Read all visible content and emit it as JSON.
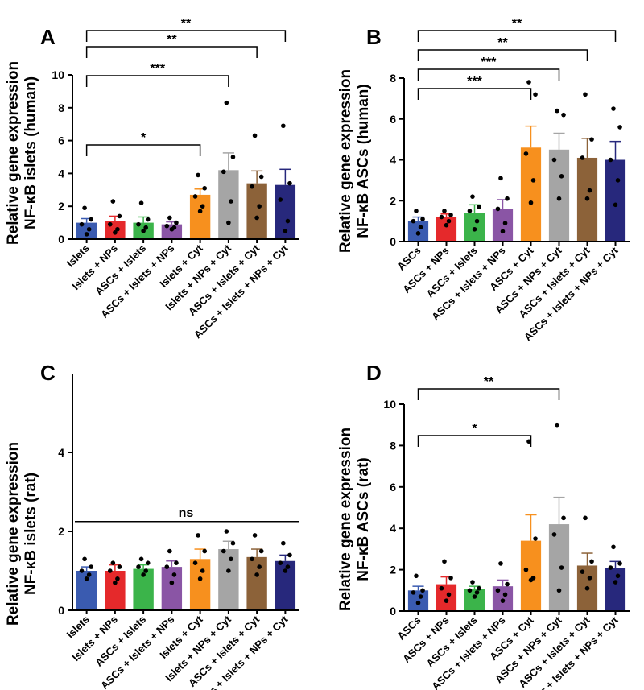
{
  "chart_data": [
    {
      "panel": "A",
      "type": "bar",
      "ylabel_line1": "Relative gene expression",
      "ylabel_line2": "NF-κB islets (human)",
      "ylim": [
        0,
        10
      ],
      "yticks": [
        0,
        2,
        4,
        6,
        8,
        10
      ],
      "categories": [
        "Islets",
        "Islets + NPs",
        "ASCs + Islets",
        "ASCs + Islets + NPs",
        "Islets + Cyt",
        "Islets + NPs + Cyt",
        "ASCs + Islets + Cyt",
        "ASCs + Islets + NPs + Cyt"
      ],
      "values": [
        1.0,
        1.1,
        1.0,
        0.9,
        2.7,
        4.2,
        3.4,
        3.3
      ],
      "errors": [
        0.25,
        0.3,
        0.35,
        0.15,
        0.35,
        1.05,
        0.75,
        0.95
      ],
      "points": [
        [
          1.9,
          1.2,
          0.9,
          0.6,
          0.3
        ],
        [
          2.3,
          1.4,
          0.9,
          0.6,
          0.4
        ],
        [
          2.2,
          1.2,
          0.9,
          0.7,
          0.5
        ],
        [
          1.3,
          1.0,
          0.8,
          0.7,
          0.6
        ],
        [
          3.9,
          3.1,
          2.6,
          2.0,
          1.7
        ],
        [
          8.3,
          5.0,
          4.1,
          2.3,
          1.0
        ],
        [
          6.3,
          3.8,
          3.2,
          2.0,
          1.3
        ],
        [
          6.9,
          3.4,
          2.4,
          1.1,
          0.5
        ]
      ],
      "colors": [
        "#3a5bb0",
        "#e5292b",
        "#3bb44a",
        "#8a55a5",
        "#f7901e",
        "#a5a5a5",
        "#8c6239",
        "#27287c"
      ],
      "significance": [
        {
          "from": 0,
          "to": 7,
          "label": "**"
        },
        {
          "from": 0,
          "to": 6,
          "label": "**"
        },
        {
          "from": 0,
          "to": 5,
          "label": "***"
        },
        {
          "from": 0,
          "to": 4,
          "label": "*"
        }
      ]
    },
    {
      "panel": "B",
      "type": "bar",
      "ylabel_line1": "Relative gene expression",
      "ylabel_line2": "NF-κB ASCs (human)",
      "ylim": [
        0,
        8
      ],
      "yticks": [
        0,
        2,
        4,
        6,
        8
      ],
      "categories": [
        "ASCs",
        "ASCs + NPs",
        "ASCs + Islets",
        "ASCs + Islets + NPs",
        "ASCs + Cyt",
        "ASCs + NPs + Cyt",
        "ASCs + Islets + Cyt",
        "ASCs + Islets + NPs + Cyt"
      ],
      "values": [
        1.0,
        1.2,
        1.4,
        1.6,
        4.6,
        4.5,
        4.1,
        4.0
      ],
      "errors": [
        0.2,
        0.15,
        0.4,
        0.45,
        1.05,
        0.8,
        0.95,
        0.9
      ],
      "points": [
        [
          1.5,
          1.1,
          1.0,
          0.7,
          0.4
        ],
        [
          1.5,
          1.3,
          1.2,
          1.0,
          0.8
        ],
        [
          2.2,
          1.7,
          1.5,
          1.0,
          0.6
        ],
        [
          3.1,
          2.1,
          1.6,
          0.9,
          0.5
        ],
        [
          7.8,
          7.2,
          4.3,
          3.0,
          1.9
        ],
        [
          6.4,
          6.2,
          4.0,
          3.2,
          2.1
        ],
        [
          7.2,
          5.0,
          4.1,
          2.5,
          2.1
        ],
        [
          6.5,
          5.6,
          4.0,
          3.0,
          1.8
        ]
      ],
      "colors": [
        "#3a5bb0",
        "#e5292b",
        "#3bb44a",
        "#8a55a5",
        "#f7901e",
        "#a5a5a5",
        "#8c6239",
        "#27287c"
      ],
      "significance": [
        {
          "from": 0,
          "to": 7,
          "label": "**"
        },
        {
          "from": 0,
          "to": 6,
          "label": "**"
        },
        {
          "from": 0,
          "to": 5,
          "label": "***"
        },
        {
          "from": 0,
          "to": 4,
          "label": "***"
        }
      ]
    },
    {
      "panel": "C",
      "type": "bar",
      "ylabel_line1": "Relative gene expression",
      "ylabel_line2": "NF-κB islets (rat)",
      "ylim": [
        0,
        6
      ],
      "yticks": [
        0,
        2,
        4
      ],
      "categories": [
        "Islets",
        "Islets + NPs",
        "ASCs + Islets",
        "ASCs + Islets + NPs",
        "Islets + Cyt",
        "Islets + NPs + Cyt",
        "ASCs + Islets + Cyt",
        "ASCs + Islets + NPs + Cyt"
      ],
      "values": [
        1.0,
        1.0,
        1.05,
        1.1,
        1.3,
        1.55,
        1.35,
        1.25
      ],
      "errors": [
        0.1,
        0.15,
        0.1,
        0.15,
        0.25,
        0.2,
        0.2,
        0.15
      ],
      "points": [
        [
          1.3,
          1.1,
          1.0,
          0.9,
          0.8
        ],
        [
          1.2,
          1.1,
          1.0,
          0.8,
          0.7
        ],
        [
          1.3,
          1.2,
          1.1,
          1.0,
          0.9
        ],
        [
          1.5,
          1.2,
          1.1,
          0.9,
          0.7
        ],
        [
          1.9,
          1.5,
          1.2,
          1.0,
          0.8
        ],
        [
          2.0,
          1.7,
          1.5,
          1.3,
          1.0
        ],
        [
          1.9,
          1.5,
          1.3,
          1.1,
          0.9
        ],
        [
          1.7,
          1.4,
          1.2,
          1.1,
          1.0
        ]
      ],
      "colors": [
        "#3a5bb0",
        "#e5292b",
        "#3bb44a",
        "#8a55a5",
        "#f7901e",
        "#a5a5a5",
        "#8c6239",
        "#27287c"
      ],
      "ns_line_y": 2.25,
      "ns_label": "ns",
      "significance": []
    },
    {
      "panel": "D",
      "type": "bar",
      "ylabel_line1": "Relative gene expression",
      "ylabel_line2": "NF-κB ASCs (rat)",
      "ylim": [
        0,
        10
      ],
      "yticks": [
        0,
        2,
        4,
        6,
        8,
        10
      ],
      "categories": [
        "ASCs",
        "ASCs + NPs",
        "ASCs + Islets",
        "ASCs + Islets + NPs",
        "ASCs + Cyt",
        "ASCs + NPs + Cyt",
        "ASCs + Islets + Cyt",
        "ASCs + Islets + NPs + Cyt"
      ],
      "values": [
        1.0,
        1.3,
        1.05,
        1.2,
        3.4,
        4.2,
        2.2,
        2.1
      ],
      "errors": [
        0.2,
        0.35,
        0.15,
        0.3,
        1.25,
        1.3,
        0.6,
        0.3
      ],
      "points": [
        [
          1.7,
          1.0,
          0.9,
          0.7,
          0.4
        ],
        [
          2.4,
          1.6,
          1.1,
          0.8,
          0.5
        ],
        [
          1.4,
          1.1,
          1.0,
          0.9,
          0.7
        ],
        [
          2.3,
          1.3,
          1.0,
          0.8,
          0.5
        ],
        [
          8.2,
          3.5,
          2.0,
          1.6,
          1.5
        ],
        [
          9.0,
          4.5,
          3.7,
          2.1,
          1.0
        ],
        [
          4.5,
          2.4,
          1.9,
          1.6,
          1.1
        ],
        [
          3.1,
          2.3,
          2.1,
          1.7,
          1.4
        ]
      ],
      "colors": [
        "#3a5bb0",
        "#e5292b",
        "#3bb44a",
        "#8a55a5",
        "#f7901e",
        "#a5a5a5",
        "#8c6239",
        "#27287c"
      ],
      "significance": [
        {
          "from": 0,
          "to": 5,
          "label": "**"
        },
        {
          "from": 0,
          "to": 4,
          "label": "*"
        }
      ]
    }
  ]
}
